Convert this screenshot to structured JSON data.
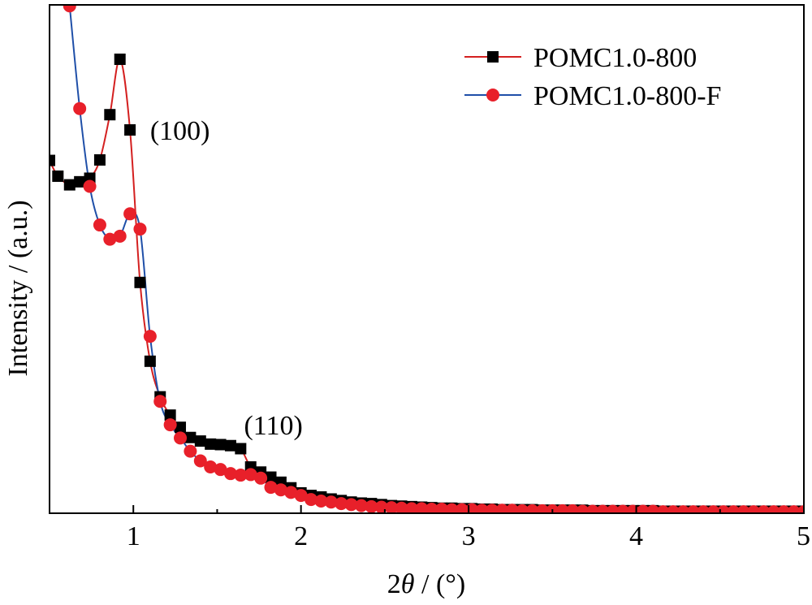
{
  "chart_data": {
    "type": "line",
    "xlabel_prefix": "2",
    "xlabel_symbol": "θ",
    "xlabel_suffix": " / (°)",
    "ylabel": "Intensity / (a.u.)",
    "xlim": [
      0.5,
      5
    ],
    "ylim": [
      0,
      100
    ],
    "xticks": [
      1,
      2,
      3,
      4,
      5
    ],
    "yticks_shown": false,
    "legend_position": "top-right",
    "annotations": [
      {
        "text": "(100)",
        "x": 1.1,
        "y": 73.5
      },
      {
        "text": "(110)",
        "x": 1.66,
        "y": 15.5
      }
    ],
    "series": [
      {
        "name": "POMC1.0-800",
        "marker": "square",
        "marker_color": "#000000",
        "line_color": "#d42020",
        "x": [
          0.5,
          0.55,
          0.62,
          0.68,
          0.74,
          0.8,
          0.86,
          0.92,
          0.98,
          1.04,
          1.1,
          1.16,
          1.22,
          1.28,
          1.34,
          1.4,
          1.46,
          1.52,
          1.58,
          1.64,
          1.7,
          1.76,
          1.82,
          1.88,
          1.94,
          2.0,
          2.06,
          2.12,
          2.18,
          2.24,
          2.3,
          2.36,
          2.42,
          2.48,
          2.54,
          2.6,
          2.66,
          2.72,
          2.78,
          2.84,
          2.9,
          2.96,
          3.02,
          3.08,
          3.14,
          3.2,
          3.26,
          3.32,
          3.38,
          3.44,
          3.5,
          3.56,
          3.62,
          3.68,
          3.74,
          3.8,
          3.86,
          3.92,
          3.98,
          4.04,
          4.1,
          4.16,
          4.22,
          4.28,
          4.34,
          4.4,
          4.46,
          4.52,
          4.58,
          4.64,
          4.7,
          4.76,
          4.82,
          4.88,
          4.94,
          5.0
        ],
        "values": [
          69.4,
          66.3,
          64.6,
          65.2,
          65.9,
          69.5,
          78.4,
          89.3,
          75.4,
          45.4,
          29.9,
          22.9,
          19.3,
          16.9,
          14.9,
          14.2,
          13.6,
          13.5,
          13.3,
          12.7,
          9.1,
          8.1,
          7.1,
          6.1,
          5.0,
          4.0,
          3.5,
          3.2,
          2.8,
          2.5,
          2.2,
          2.0,
          1.9,
          1.7,
          1.5,
          1.4,
          1.3,
          1.2,
          1.1,
          1.0,
          1.0,
          0.9,
          0.9,
          0.8,
          0.8,
          0.7,
          0.7,
          0.7,
          0.7,
          0.6,
          0.6,
          0.6,
          0.6,
          0.6,
          0.5,
          0.5,
          0.5,
          0.5,
          0.5,
          0.5,
          0.5,
          0.4,
          0.4,
          0.4,
          0.4,
          0.4,
          0.4,
          0.4,
          0.4,
          0.4,
          0.4,
          0.4,
          0.4,
          0.4,
          0.4,
          0.4
        ]
      },
      {
        "name": "POMC1.0-800-F",
        "marker": "circle",
        "marker_color": "#e8202a",
        "line_color": "#1f4fa8",
        "x": [
          0.62,
          0.68,
          0.74,
          0.8,
          0.86,
          0.92,
          0.98,
          1.04,
          1.1,
          1.16,
          1.22,
          1.28,
          1.34,
          1.4,
          1.46,
          1.52,
          1.58,
          1.64,
          1.7,
          1.76,
          1.82,
          1.88,
          1.94,
          2.0,
          2.06,
          2.12,
          2.18,
          2.24,
          2.3,
          2.36,
          2.42,
          2.48,
          2.54,
          2.6,
          2.66,
          2.72,
          2.78,
          2.84,
          2.9,
          2.96,
          3.02,
          3.08,
          3.14,
          3.2,
          3.26,
          3.32,
          3.38,
          3.44,
          3.5,
          3.56,
          3.62,
          3.68,
          3.74,
          3.8,
          3.86,
          3.92,
          3.98,
          4.04,
          4.1,
          4.16,
          4.22,
          4.28,
          4.34,
          4.4,
          4.46,
          4.52,
          4.58,
          4.64,
          4.7,
          4.76,
          4.82,
          4.88,
          4.94,
          5.0
        ],
        "values": [
          99.8,
          79.6,
          64.3,
          56.7,
          53.9,
          54.5,
          58.9,
          55.9,
          34.8,
          22.0,
          17.4,
          14.8,
          12.2,
          10.3,
          9.1,
          8.6,
          7.8,
          7.5,
          7.6,
          6.9,
          5.1,
          4.6,
          4.1,
          3.5,
          2.7,
          2.4,
          2.2,
          1.9,
          1.7,
          1.5,
          1.3,
          1.2,
          1.1,
          1.0,
          0.9,
          0.9,
          0.8,
          0.8,
          0.7,
          0.7,
          0.7,
          0.6,
          0.6,
          0.6,
          0.6,
          0.5,
          0.5,
          0.5,
          0.5,
          0.5,
          0.5,
          0.4,
          0.4,
          0.4,
          0.4,
          0.4,
          0.4,
          0.4,
          0.4,
          0.3,
          0.3,
          0.3,
          0.3,
          0.3,
          0.3,
          0.3,
          0.3,
          0.3,
          0.3,
          0.3,
          0.3,
          0.3,
          0.3,
          0.3
        ]
      }
    ]
  }
}
